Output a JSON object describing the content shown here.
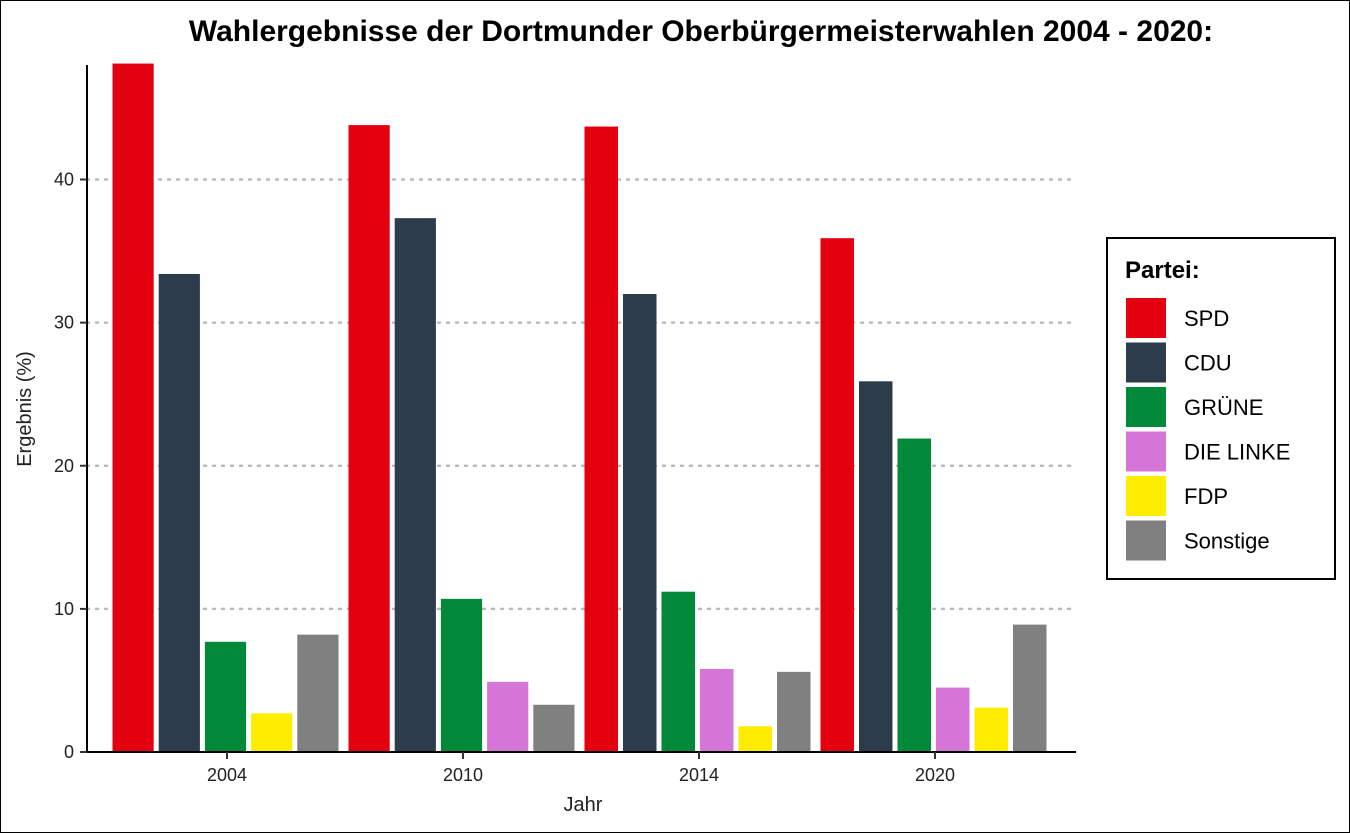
{
  "chart_data": {
    "type": "bar",
    "title": "Wahlergebnisse der Dortmunder Oberbürgermeisterwahlen 2004 - 2020:",
    "xlabel": "Jahr",
    "ylabel": "Ergebnis (%)",
    "categories": [
      "2004",
      "2010",
      "2014",
      "2020"
    ],
    "ylim": [
      0,
      48
    ],
    "yticks": [
      "0",
      "10",
      "20",
      "30",
      "40"
    ],
    "grid": "horizontal dotted",
    "legend": {
      "title": "Partei:",
      "placement": "right"
    },
    "series": [
      {
        "name": "SPD",
        "color": "#e3000f",
        "values": [
          48.1,
          43.8,
          43.7,
          35.9
        ]
      },
      {
        "name": "CDU",
        "color": "#2d3c4b",
        "values": [
          33.4,
          37.3,
          32.0,
          25.9
        ]
      },
      {
        "name": "GRÜNE",
        "color": "#008939",
        "values": [
          7.7,
          10.7,
          11.2,
          21.9
        ]
      },
      {
        "name": "DIE LINKE",
        "color": "#d675d8",
        "values": [
          null,
          4.9,
          5.8,
          4.5
        ]
      },
      {
        "name": "FDP",
        "color": "#ffed00",
        "values": [
          2.7,
          null,
          1.8,
          3.1
        ]
      },
      {
        "name": "Sonstige",
        "color": "#808080",
        "values": [
          8.2,
          3.3,
          5.6,
          8.9
        ]
      }
    ]
  }
}
